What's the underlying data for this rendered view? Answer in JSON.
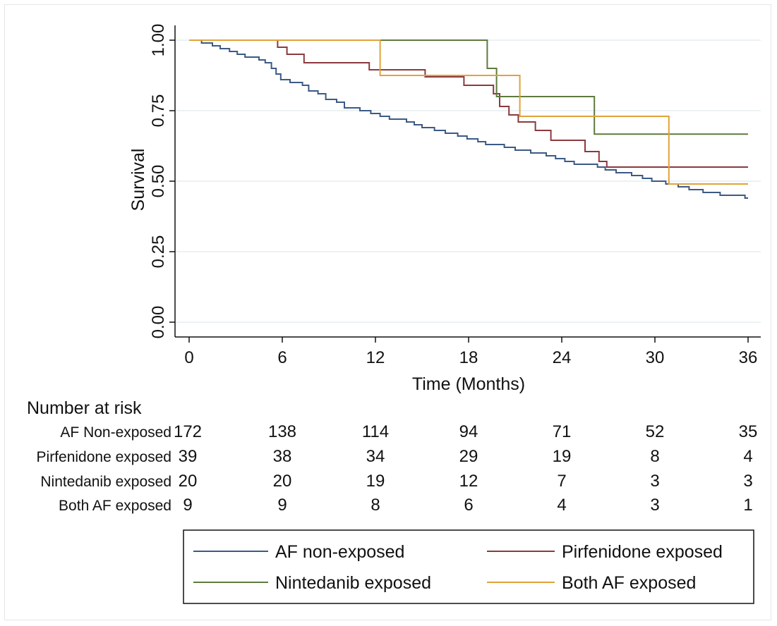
{
  "chart_data": {
    "type": "line",
    "subtype": "kaplan-meier survival",
    "xlabel": "Time (Months)",
    "ylabel": "Survival",
    "xlim": [
      0,
      36
    ],
    "ylim": [
      0,
      1
    ],
    "x_ticks": [
      0,
      6,
      12,
      18,
      24,
      30,
      36
    ],
    "x_tick_labels": [
      "0",
      "6",
      "12",
      "18",
      "24",
      "30",
      "36"
    ],
    "y_ticks": [
      0,
      0.25,
      0.5,
      0.75,
      1
    ],
    "y_tick_labels": [
      "0.00",
      "0.25",
      "0.50",
      "0.75",
      "1.00"
    ],
    "grid": "horizontal",
    "legend_position": "bottom",
    "series": [
      {
        "name": "AF non-exposed",
        "color": "#3c5a85",
        "steps": [
          [
            0,
            1.0
          ],
          [
            0.8,
            0.99
          ],
          [
            1.5,
            0.98
          ],
          [
            2.0,
            0.97
          ],
          [
            2.6,
            0.96
          ],
          [
            3.1,
            0.95
          ],
          [
            3.6,
            0.94
          ],
          [
            4.5,
            0.93
          ],
          [
            4.9,
            0.92
          ],
          [
            5.3,
            0.9
          ],
          [
            5.6,
            0.88
          ],
          [
            5.9,
            0.86
          ],
          [
            6.5,
            0.85
          ],
          [
            7.3,
            0.84
          ],
          [
            7.7,
            0.82
          ],
          [
            8.3,
            0.81
          ],
          [
            8.8,
            0.79
          ],
          [
            9.5,
            0.78
          ],
          [
            10.0,
            0.76
          ],
          [
            11.0,
            0.75
          ],
          [
            11.7,
            0.74
          ],
          [
            12.3,
            0.73
          ],
          [
            12.9,
            0.72
          ],
          [
            14.0,
            0.71
          ],
          [
            14.5,
            0.7
          ],
          [
            15.0,
            0.69
          ],
          [
            15.8,
            0.68
          ],
          [
            16.5,
            0.67
          ],
          [
            17.3,
            0.66
          ],
          [
            17.9,
            0.65
          ],
          [
            18.6,
            0.64
          ],
          [
            19.1,
            0.63
          ],
          [
            20.3,
            0.62
          ],
          [
            21.0,
            0.61
          ],
          [
            22.0,
            0.6
          ],
          [
            23.0,
            0.59
          ],
          [
            23.6,
            0.58
          ],
          [
            24.2,
            0.57
          ],
          [
            24.8,
            0.56
          ],
          [
            26.3,
            0.55
          ],
          [
            26.8,
            0.54
          ],
          [
            27.5,
            0.53
          ],
          [
            28.5,
            0.52
          ],
          [
            29.2,
            0.51
          ],
          [
            29.8,
            0.5
          ],
          [
            30.7,
            0.49
          ],
          [
            31.5,
            0.48
          ],
          [
            32.2,
            0.47
          ],
          [
            33.1,
            0.46
          ],
          [
            34.2,
            0.45
          ],
          [
            35.8,
            0.44
          ],
          [
            36.0,
            0.44
          ]
        ]
      },
      {
        "name": "Pirfenidone exposed",
        "color": "#8b3a3f",
        "steps": [
          [
            0,
            1.0
          ],
          [
            5.7,
            0.975
          ],
          [
            6.3,
            0.95
          ],
          [
            7.4,
            0.92
          ],
          [
            11.6,
            0.895
          ],
          [
            15.2,
            0.87
          ],
          [
            17.7,
            0.84
          ],
          [
            19.6,
            0.81
          ],
          [
            20.0,
            0.765
          ],
          [
            20.6,
            0.735
          ],
          [
            21.2,
            0.71
          ],
          [
            22.3,
            0.68
          ],
          [
            23.3,
            0.645
          ],
          [
            25.5,
            0.605
          ],
          [
            26.4,
            0.57
          ],
          [
            26.9,
            0.55
          ],
          [
            36.0,
            0.55
          ]
        ]
      },
      {
        "name": "Nintedanib exposed",
        "color": "#5e7a3e",
        "steps": [
          [
            0,
            1.0
          ],
          [
            19.2,
            0.9
          ],
          [
            19.8,
            0.8
          ],
          [
            26.1,
            0.667
          ],
          [
            36.0,
            0.667
          ]
        ]
      },
      {
        "name": "Both AF exposed",
        "color": "#e0a33a",
        "steps": [
          [
            0,
            1.0
          ],
          [
            12.3,
            0.875
          ],
          [
            21.3,
            0.73
          ],
          [
            30.9,
            0.49
          ],
          [
            36.0,
            0.49
          ]
        ]
      }
    ],
    "risk_table": {
      "title": "Number at risk",
      "rows": [
        {
          "label": "AF Non-exposed",
          "values": [
            "172",
            "138",
            "114",
            "94",
            "71",
            "52",
            "35"
          ]
        },
        {
          "label": "Pirfenidone exposed",
          "values": [
            "39",
            "38",
            "34",
            "29",
            "19",
            "8",
            "4"
          ]
        },
        {
          "label": "Nintedanib exposed",
          "values": [
            "20",
            "20",
            "19",
            "12",
            "7",
            "3",
            "3"
          ]
        },
        {
          "label": "Both AF exposed",
          "values": [
            "9",
            "9",
            "8",
            "6",
            "4",
            "3",
            "1"
          ]
        }
      ]
    }
  }
}
